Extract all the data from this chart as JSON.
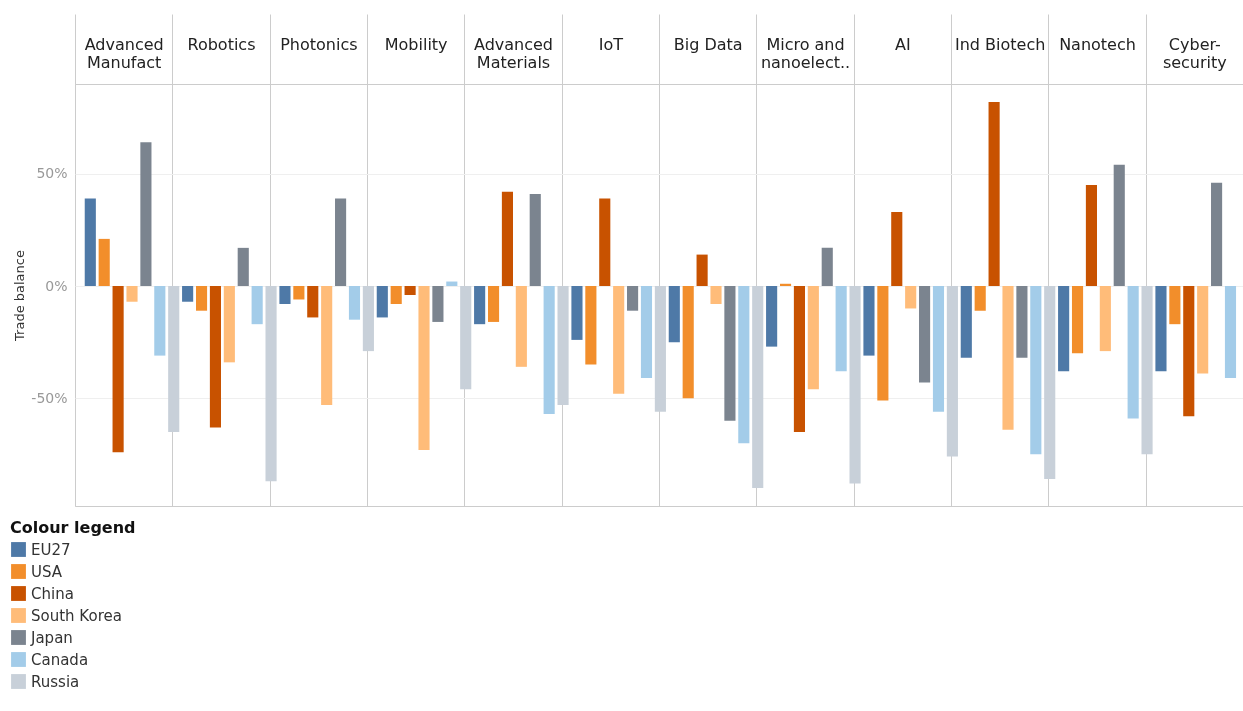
{
  "chart_data": {
    "type": "bar",
    "ylabel": "Trade balance",
    "legend_title": "Colour legend",
    "legend": "bottom",
    "grid": true,
    "categories": [
      "Advanced Manufact",
      "Robotics",
      "Photonics",
      "Mobility",
      "Advanced Materials",
      "IoT",
      "Big Data",
      "Micro and nanoelect..",
      "AI",
      "Ind Biotech",
      "Nanotech",
      "Cyber-security"
    ],
    "ylim": [
      -98,
      90
    ],
    "yticks": [
      {
        "value": -50,
        "label": "-50%"
      },
      {
        "value": 0,
        "label": "0%"
      },
      {
        "value": 50,
        "label": "50%"
      }
    ],
    "series": [
      {
        "name": "EU27",
        "color": "#4e79a7",
        "values": [
          39,
          -7,
          -8,
          -14,
          -17,
          -24,
          -25,
          -27,
          -31,
          -32,
          -38,
          -38
        ]
      },
      {
        "name": "USA",
        "color": "#f28e2b",
        "values": [
          21,
          -11,
          -6,
          -8,
          -16,
          -35,
          -50,
          1,
          -51,
          -11,
          -30,
          -17
        ]
      },
      {
        "name": "China",
        "color": "#c85200",
        "values": [
          -74,
          -63,
          -14,
          -4,
          42,
          39,
          14,
          -65,
          33,
          82,
          45,
          -58
        ]
      },
      {
        "name": "South Korea",
        "color": "#ffbc79",
        "values": [
          -7,
          -34,
          -53,
          -73,
          -36,
          -48,
          -8,
          -46,
          -10,
          -64,
          -29,
          -39
        ]
      },
      {
        "name": "Japan",
        "color": "#7b848f",
        "values": [
          64,
          17,
          39,
          -16,
          41,
          -11,
          -60,
          17,
          -43,
          -32,
          54,
          46
        ]
      },
      {
        "name": "Canada",
        "color": "#a3cce9",
        "values": [
          -31,
          -17,
          -15,
          2,
          -57,
          -41,
          -70,
          -38,
          -56,
          -75,
          -59,
          -41
        ]
      },
      {
        "name": "Russia",
        "color": "#c8d0d9",
        "values": [
          -65,
          -87,
          -29,
          -46,
          -53,
          -56,
          -90,
          -88,
          -76,
          -86,
          -75,
          null
        ]
      }
    ]
  }
}
